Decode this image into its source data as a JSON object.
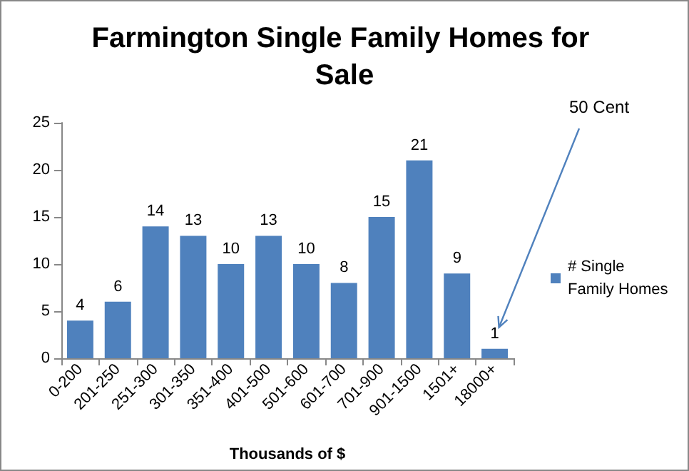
{
  "chart_data": {
    "type": "bar",
    "title": "Farmington Single Family Homes for Sale",
    "xlabel": "Thousands of $",
    "categories": [
      "0-200",
      "201-250",
      "251-300",
      "301-350",
      "351-400",
      "401-500",
      "501-600",
      "601-700",
      "701-900",
      "901-1500",
      "1501+",
      "18000+"
    ],
    "series": [
      {
        "name": "# Single Family Homes",
        "color": "#4f81bd",
        "values": [
          4,
          6,
          14,
          13,
          10,
          13,
          10,
          8,
          15,
          21,
          9,
          1
        ]
      }
    ],
    "ylim": [
      0,
      25
    ],
    "yticks": [
      0,
      5,
      10,
      15,
      20,
      25
    ],
    "grid": false,
    "legend": "right",
    "data_labels": true,
    "annotations": [
      "50 Cent"
    ]
  }
}
